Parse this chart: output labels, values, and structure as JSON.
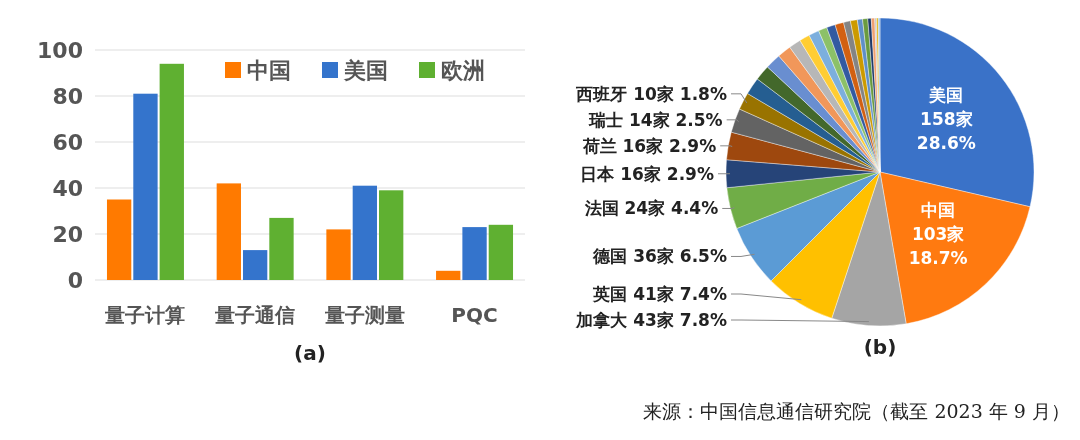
{
  "chart_data": [
    {
      "type": "bar",
      "title": "(a)",
      "categories": [
        "量子计算",
        "量子通信",
        "量子测量",
        "PQC"
      ],
      "series": [
        {
          "name": "中国",
          "color": "#ff7a00",
          "values": [
            35,
            42,
            22,
            4
          ]
        },
        {
          "name": "美国",
          "color": "#3474cc",
          "values": [
            81,
            13,
            41,
            23
          ]
        },
        {
          "name": "欧洲",
          "color": "#5fb031",
          "values": [
            94,
            27,
            39,
            24
          ]
        }
      ],
      "ylim": [
        0,
        100
      ],
      "yticks": [
        0,
        20,
        40,
        60,
        80,
        100
      ],
      "grid": "y",
      "legend": "top right"
    },
    {
      "type": "pie",
      "title": "(b)",
      "categories": [
        "美国",
        "中国",
        "加拿大",
        "英国",
        "德国",
        "法国",
        "日本",
        "荷兰",
        "瑞士",
        "西班牙",
        null,
        null,
        null,
        null,
        null,
        null,
        null,
        null,
        null,
        null,
        null,
        null,
        null,
        null,
        null,
        null,
        null,
        null,
        null
      ],
      "values": [
        158,
        103,
        43,
        41,
        36,
        24,
        16,
        16,
        14,
        10,
        10,
        9,
        9,
        8,
        7,
        6,
        6,
        5,
        5,
        5,
        4,
        4,
        3,
        3,
        2,
        2,
        1,
        1,
        1
      ],
      "value_labels": [
        "158家 28.6%",
        "103家 18.7%",
        "43家 7.8%",
        "41家 7.4%",
        "36家 6.5%",
        "24家 4.4%",
        "16家 2.9%",
        "16家 2.9%",
        "14家 2.5%",
        "10家 1.8%",
        null,
        null,
        null,
        null,
        null,
        null,
        null,
        null,
        null,
        null,
        null,
        null,
        null,
        null,
        null,
        null,
        null,
        null,
        null
      ],
      "colors": [
        "#3a72c8",
        "#ff7a10",
        "#a5a5a5",
        "#ffc000",
        "#5b9bd5",
        "#70ad47",
        "#264478",
        "#9e480e",
        "#636363",
        "#997300",
        "#255e91",
        "#43682b",
        "#698ed0",
        "#f1975a",
        "#b7b7b7",
        "#ffcd33",
        "#7cafdd",
        "#8cc168",
        "#335aa1",
        "#d26012",
        "#848484",
        "#cc9a00",
        "#5f8fc8",
        "#6a9b3f",
        "#1e3a6a",
        "#f0a070",
        "#c8c8c8",
        "#e0b000",
        "#9cc3e6"
      ],
      "annotations": [
        "来源：中国信息通信研究院（截至 2023 年 9 月）"
      ]
    }
  ]
}
